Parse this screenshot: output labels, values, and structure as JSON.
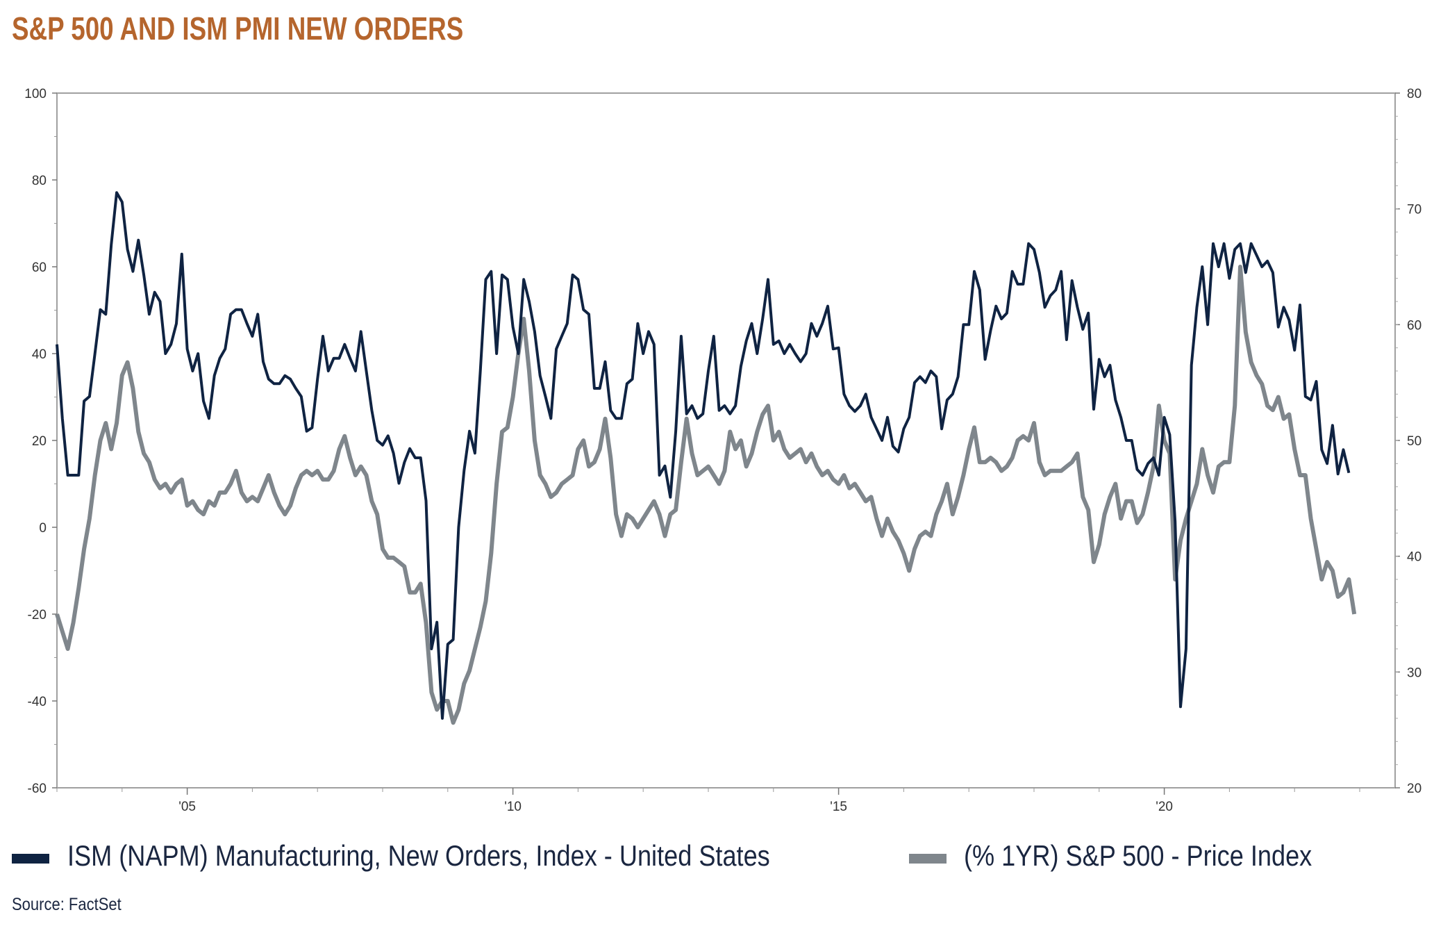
{
  "chart_data": {
    "type": "line",
    "title": "S&P 500 AND ISM PMI NEW ORDERS",
    "source": "Source: FactSet",
    "x_ticks": [
      "'05",
      "'10",
      "'15",
      "'20"
    ],
    "x_tick_years": [
      2005,
      2010,
      2015,
      2020
    ],
    "xlim": [
      "2003-01",
      "2023-07"
    ],
    "left_axis": {
      "ylim": [
        -60,
        100
      ],
      "ticks": [
        "100",
        "80",
        "60",
        "40",
        "20",
        "0",
        "-20",
        "-40",
        "-60"
      ]
    },
    "right_axis": {
      "ylim": [
        20,
        80
      ],
      "ticks": [
        "80",
        "70",
        "60",
        "50",
        "40",
        "30",
        "20"
      ]
    },
    "grid": false,
    "legend_position": "bottom",
    "series": [
      {
        "name": "ISM (NAPM) Manufacturing, New Orders, Index - United States",
        "axis": "right",
        "color": "#0f2342",
        "start": "2003-01",
        "frequency": "monthly",
        "values": [
          58.3,
          51.9,
          47,
          47,
          47,
          53.4,
          53.8,
          57.5,
          61.3,
          60.9,
          66.9,
          71.4,
          70.6,
          66.5,
          64.6,
          67.3,
          64.3,
          60.9,
          62.8,
          62,
          57.5,
          58.3,
          60.1,
          66.1,
          57.9,
          56,
          57.5,
          53.4,
          51.9,
          55.6,
          57.1,
          57.9,
          60.9,
          61.3,
          61.3,
          60.1,
          59,
          60.9,
          56.8,
          55.3,
          54.9,
          54.9,
          55.6,
          55.3,
          54.5,
          53.8,
          50.8,
          51.1,
          55.3,
          59,
          56,
          57.1,
          57.1,
          58.3,
          57.1,
          56,
          59.4,
          56,
          52.6,
          50,
          49.6,
          50.4,
          48.9,
          46.3,
          48.1,
          49.3,
          48.5,
          48.5,
          44.8,
          32,
          34.3,
          26,
          32.4,
          32.8,
          42.5,
          47.4,
          50.8,
          48.9,
          56,
          63.9,
          64.6,
          57.5,
          64.3,
          63.9,
          59.8,
          57.5,
          63.9,
          62,
          59.4,
          55.6,
          53.8,
          51.9,
          57.9,
          59,
          60.1,
          64.3,
          63.9,
          61.3,
          60.9,
          54.5,
          54.5,
          56.8,
          52.6,
          51.9,
          51.9,
          54.9,
          55.3,
          60.1,
          57.5,
          59.4,
          58.3,
          47,
          47.8,
          45.1,
          50.8,
          59,
          52.3,
          53,
          51.9,
          52.3,
          56,
          59,
          52.6,
          53,
          52.3,
          53,
          56.4,
          58.6,
          60.1,
          57.5,
          60.5,
          63.9,
          58.3,
          58.6,
          57.5,
          58.3,
          57.5,
          56.8,
          57.5,
          60.1,
          59,
          60.1,
          61.6,
          57.9,
          58,
          54,
          53,
          52.5,
          53,
          54,
          52,
          51,
          50,
          52,
          49.5,
          49,
          51,
          52,
          55,
          55.5,
          55,
          56,
          55.5,
          51,
          53.5,
          54,
          55.5,
          60,
          60,
          64.6,
          63,
          57,
          59.5,
          61.6,
          60.5,
          61,
          64.6,
          63.5,
          63.5,
          67,
          66.5,
          64.5,
          61.5,
          62.5,
          63,
          64.6,
          58.7,
          63.8,
          61.5,
          59.6,
          61,
          52.7,
          57,
          55.5,
          56.5,
          53.5,
          52,
          50,
          50,
          47.5,
          47,
          48,
          48.5,
          47,
          52,
          50.5,
          43,
          27,
          32,
          56.5,
          61.5,
          65,
          60,
          67,
          65,
          67,
          64,
          66.5,
          67,
          64.5,
          67,
          66,
          65,
          65.5,
          64.5,
          59.8,
          61.5,
          60.4,
          57.8,
          61.7,
          53.8,
          53.5,
          55.1,
          49.2,
          48,
          51.3,
          47.1,
          49.2,
          47.2
        ]
      },
      {
        "name": "(% 1YR) S&P 500 - Price Index",
        "axis": "left",
        "color": "#7f868c",
        "start": "2003-01",
        "frequency": "monthly",
        "values": [
          -20,
          -24,
          -28,
          -22,
          -14,
          -5,
          2,
          12,
          20,
          24,
          18,
          24,
          35,
          38,
          32,
          22,
          17,
          15,
          11,
          9,
          10,
          8,
          10,
          11,
          5,
          6,
          4,
          3,
          6,
          5,
          8,
          8,
          10,
          13,
          8,
          6,
          7,
          6,
          9,
          12,
          8,
          5,
          3,
          5,
          9,
          12,
          13,
          12,
          13,
          11,
          11,
          13,
          18,
          21,
          16,
          12,
          14,
          12,
          6,
          3,
          -5,
          -7,
          -7,
          -8,
          -9,
          -15,
          -15,
          -13,
          -22,
          -38,
          -42,
          -40,
          -40,
          -45,
          -42,
          -36,
          -33,
          -28,
          -23,
          -17,
          -6,
          10,
          22,
          23,
          30,
          40,
          48,
          36,
          20,
          12,
          10,
          7,
          8,
          10,
          11,
          12,
          18,
          20,
          14,
          15,
          18,
          25,
          16,
          3,
          -2,
          3,
          2,
          0,
          2,
          4,
          6,
          3,
          -2,
          3,
          4,
          15,
          25,
          17,
          12,
          13,
          14,
          12,
          10,
          13,
          22,
          18,
          20,
          14,
          17,
          22,
          26,
          28,
          20,
          22,
          18,
          16,
          17,
          18,
          15,
          17,
          14,
          12,
          13,
          11,
          10,
          12,
          9,
          10,
          8,
          6,
          7,
          2,
          -2,
          2,
          -1,
          -3,
          -6,
          -10,
          -5,
          -2,
          -1,
          -2,
          3,
          6,
          10,
          3,
          7,
          12,
          18,
          23,
          15,
          15,
          16,
          15,
          13,
          14,
          16,
          20,
          21,
          20,
          24,
          15,
          12,
          13,
          13,
          13,
          14,
          15,
          17,
          7,
          4,
          -8,
          -4,
          3,
          7,
          10,
          2,
          6,
          6,
          1,
          3,
          8,
          14,
          28,
          20,
          17,
          -12,
          -3,
          2,
          6,
          10,
          18,
          12,
          8,
          14,
          15,
          15,
          28,
          60,
          45,
          38,
          35,
          33,
          28,
          27,
          30,
          25,
          26,
          18,
          12,
          12,
          2,
          -5,
          -12,
          -8,
          -10,
          -16,
          -15,
          -12,
          -20
        ]
      }
    ]
  }
}
